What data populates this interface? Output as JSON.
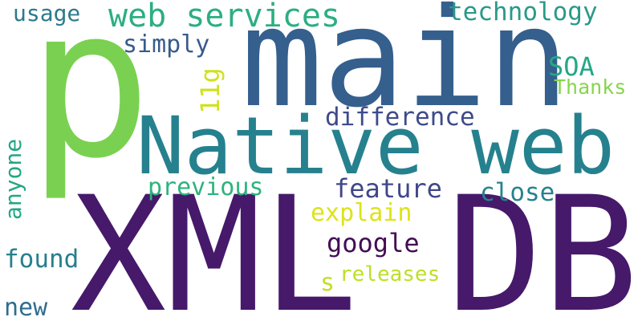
{
  "words": [
    {
      "text": "p",
      "color": "#7ad151"
    },
    {
      "text": "main",
      "color": "#355f8d"
    },
    {
      "text": "XML",
      "color": "#46196b"
    },
    {
      "text": "DB",
      "color": "#46196b"
    },
    {
      "text": "Native web",
      "color": "#26818e"
    },
    {
      "text": "web services",
      "color": "#2cae83"
    },
    {
      "text": "technology",
      "color": "#2a9988"
    },
    {
      "text": "usage",
      "color": "#2c7a8e"
    },
    {
      "text": "simply",
      "color": "#375b8d"
    },
    {
      "text": "SOA",
      "color": "#25a786"
    },
    {
      "text": "Thanks",
      "color": "#86d54c"
    },
    {
      "text": "11g",
      "color": "#d0e11c"
    },
    {
      "text": "difference",
      "color": "#3e4b8a"
    },
    {
      "text": "anyone",
      "color": "#22a785"
    },
    {
      "text": "previous",
      "color": "#2eb37c"
    },
    {
      "text": "feature",
      "color": "#3f4788"
    },
    {
      "text": "close",
      "color": "#25838e"
    },
    {
      "text": "explain",
      "color": "#dde318"
    },
    {
      "text": "google",
      "color": "#440d54"
    },
    {
      "text": "found",
      "color": "#277f8e"
    },
    {
      "text": "s",
      "color": "#c2df23"
    },
    {
      "text": "releases",
      "color": "#bddf26"
    },
    {
      "text": "new",
      "color": "#2f6c8e"
    }
  ]
}
